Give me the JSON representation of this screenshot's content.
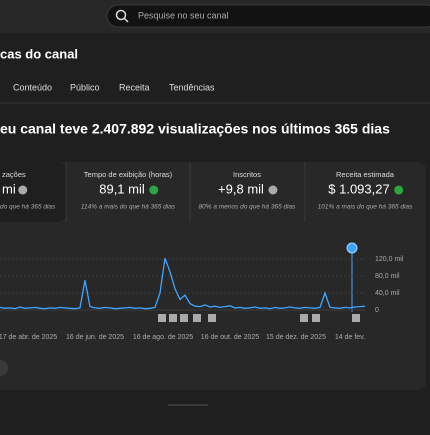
{
  "search": {
    "placeholder": "Pesquise no seu canal"
  },
  "header": {
    "title": "cas do canal"
  },
  "tabs": [
    "Conteúdo",
    "Público",
    "Receita",
    "Tendências"
  ],
  "headline": "eu canal teve 2.407.892 visualizações nos últimos 365 dias",
  "metrics": [
    {
      "label": "zações",
      "value": "mi",
      "change": "do que há 365 dias"
    },
    {
      "label": "Tempo de exibição (horas)",
      "value": "89,1 mil",
      "change": "114% a mais do que há 365 dias"
    },
    {
      "label": "Inscritos",
      "value": "+9,8 mil",
      "change": "80% a menos do que há 365 dias"
    },
    {
      "label": "Receita estimada",
      "value": "$ 1.093,27",
      "change": "101% a mais do que há 365 dias"
    }
  ],
  "chart": {
    "type": "line",
    "color": "#3ea6ff",
    "values": [
      6000,
      4000,
      5000,
      3000,
      7000,
      4000,
      5000,
      6000,
      4000,
      3000,
      5000,
      4000,
      6000,
      5000,
      4000,
      3000,
      5000,
      70000,
      8000,
      5000,
      4000,
      6000,
      5000,
      3000,
      4000,
      5000,
      6000,
      4000,
      5000,
      3000,
      4000,
      6000,
      40000,
      122000,
      90000,
      50000,
      25000,
      35000,
      15000,
      9000,
      8000,
      12000,
      7000,
      9000,
      6000,
      8000,
      10000,
      5000,
      6000,
      4000,
      5000,
      7000,
      4000,
      5000,
      3000,
      6000,
      4000,
      5000,
      7000,
      5000,
      4000,
      6000,
      5000,
      4000,
      6000,
      40000,
      6000,
      5000,
      4000,
      6000,
      5000,
      7000,
      8000,
      9000
    ],
    "ylim": [
      0,
      120000
    ],
    "yticks": [
      {
        "value": 0,
        "label": "0"
      },
      {
        "value": 40000,
        "label": "40,0 mil"
      },
      {
        "value": 80000,
        "label": "80,0 mil"
      },
      {
        "value": 120000,
        "label": "120,0 mil"
      }
    ],
    "xlabels": [
      "17 de abr. de 2025",
      "16 de jun. de 2025",
      "16 de ago. de 2025",
      "16 de out. de 2025",
      "15 de dez. de 2025",
      "14 de fev."
    ]
  }
}
